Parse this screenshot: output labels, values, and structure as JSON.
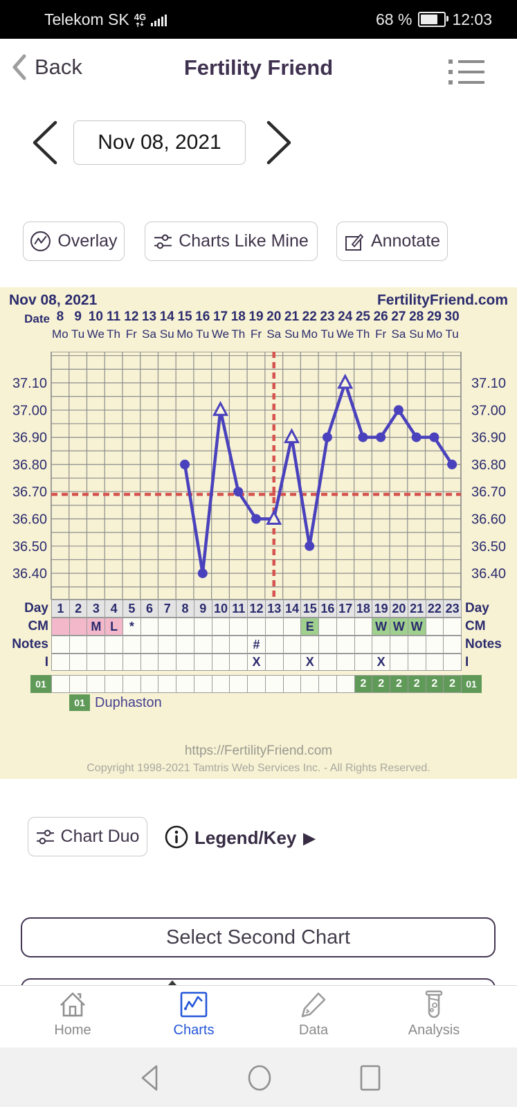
{
  "status_bar": {
    "carrier": "Telekom SK",
    "network": "4G",
    "battery_percent": "68 %",
    "time": "12:03"
  },
  "header": {
    "back_label": "Back",
    "title": "Fertility Friend"
  },
  "date_nav": {
    "date": "Nov 08, 2021"
  },
  "actions": {
    "overlay": "Overlay",
    "charts_like_mine": "Charts Like Mine",
    "annotate": "Annotate"
  },
  "chart_header": {
    "date": "Nov 08, 2021",
    "site": "FertilityFriend.com"
  },
  "chart_data": {
    "type": "line",
    "title": "Nov 08, 2021",
    "x_axis": {
      "label": "Date",
      "dates": [
        8,
        9,
        10,
        11,
        12,
        13,
        14,
        15,
        16,
        17,
        18,
        19,
        20,
        21,
        22,
        23,
        24,
        25,
        26,
        27,
        28,
        29,
        30
      ],
      "weekdays": [
        "Mo",
        "Tu",
        "We",
        "Th",
        "Fr",
        "Sa",
        "Su",
        "Mo",
        "Tu",
        "We",
        "Th",
        "Fr",
        "Sa",
        "Su",
        "Mo",
        "Tu",
        "We",
        "Th",
        "Fr",
        "Sa",
        "Su",
        "Mo",
        "Tu"
      ]
    },
    "y_axis": {
      "ticks": [
        "37.10",
        "37.00",
        "36.90",
        "36.80",
        "36.70",
        "36.60",
        "36.50",
        "36.40"
      ],
      "unit": "°C",
      "minor_step": 0.05
    },
    "series": [
      {
        "name": "BBT",
        "points": [
          {
            "day": 8,
            "temp": 36.8,
            "marker": "circle"
          },
          {
            "day": 9,
            "temp": 36.4,
            "marker": "circle"
          },
          {
            "day": 10,
            "temp": 37.0,
            "marker": "triangle"
          },
          {
            "day": 11,
            "temp": 36.7,
            "marker": "circle"
          },
          {
            "day": 12,
            "temp": 36.6,
            "marker": "circle"
          },
          {
            "day": 13,
            "temp": 36.6,
            "marker": "triangle"
          },
          {
            "day": 14,
            "temp": 36.9,
            "marker": "triangle"
          },
          {
            "day": 15,
            "temp": 36.5,
            "marker": "circle"
          },
          {
            "day": 16,
            "temp": 36.9,
            "marker": "circle"
          },
          {
            "day": 17,
            "temp": 37.1,
            "marker": "triangle"
          },
          {
            "day": 18,
            "temp": 36.9,
            "marker": "circle"
          },
          {
            "day": 19,
            "temp": 36.9,
            "marker": "circle"
          },
          {
            "day": 20,
            "temp": 37.0,
            "marker": "circle"
          },
          {
            "day": 21,
            "temp": 36.9,
            "marker": "circle"
          },
          {
            "day": 22,
            "temp": 36.9,
            "marker": "circle"
          },
          {
            "day": 23,
            "temp": 36.8,
            "marker": "circle"
          }
        ]
      }
    ],
    "coverline_temp": 36.69,
    "ovulation_day_line": 13,
    "line_color": "#4a41bd",
    "dashed_line_color": "#d65450",
    "grid_color": "#8d8d8d",
    "background_color": "#f7f2d4"
  },
  "table": {
    "rows": {
      "day": {
        "label": "Day",
        "values": [
          1,
          2,
          3,
          4,
          5,
          6,
          7,
          8,
          9,
          10,
          11,
          12,
          13,
          14,
          15,
          16,
          17,
          18,
          19,
          20,
          21,
          22,
          23
        ]
      },
      "cm": {
        "label": "CM",
        "cells": [
          {
            "day": 1,
            "text": "",
            "bg": "pink"
          },
          {
            "day": 2,
            "text": "",
            "bg": "pink"
          },
          {
            "day": 3,
            "text": "M",
            "bg": "pink"
          },
          {
            "day": 4,
            "text": "L",
            "bg": "pink"
          },
          {
            "day": 5,
            "text": "*",
            "bg": "white"
          },
          {
            "day": 15,
            "text": "E",
            "bg": "green"
          },
          {
            "day": 19,
            "text": "W",
            "bg": "green"
          },
          {
            "day": 20,
            "text": "W",
            "bg": "green"
          },
          {
            "day": 21,
            "text": "W",
            "bg": "green"
          }
        ]
      },
      "notes": {
        "label": "Notes",
        "cells": [
          {
            "day": 12,
            "text": "#",
            "bg": "white"
          }
        ]
      },
      "i": {
        "label": "I",
        "cells": [
          {
            "day": 12,
            "text": "X",
            "bg": "white"
          },
          {
            "day": 15,
            "text": "X",
            "bg": "white"
          },
          {
            "day": 19,
            "text": "X",
            "bg": "white"
          }
        ]
      },
      "med": {
        "label": "01",
        "cells": [
          {
            "day": 18,
            "text": "2",
            "bg": "dgreen"
          },
          {
            "day": 19,
            "text": "2",
            "bg": "dgreen"
          },
          {
            "day": 20,
            "text": "2",
            "bg": "dgreen"
          },
          {
            "day": 21,
            "text": "2",
            "bg": "dgreen"
          },
          {
            "day": 22,
            "text": "2",
            "bg": "dgreen"
          },
          {
            "day": 23,
            "text": "2",
            "bg": "dgreen"
          }
        ]
      }
    },
    "med_legend": {
      "code": "01",
      "name": "Duphaston"
    }
  },
  "footer": {
    "url": "https://FertilityFriend.com",
    "copyright": "Copyright 1998-2021 Tamtris Web Services Inc. - All Rights Reserved."
  },
  "secondary": {
    "chart_duo": "Chart Duo",
    "legend_key": "Legend/Key",
    "legend_arrow": "▶",
    "select_second_chart": "Select Second Chart"
  },
  "bottom_nav": {
    "items": [
      {
        "label": "Home",
        "active": false
      },
      {
        "label": "Charts",
        "active": true
      },
      {
        "label": "Data",
        "active": false
      },
      {
        "label": "Analysis",
        "active": false
      }
    ],
    "active_color": "#2356d8"
  }
}
